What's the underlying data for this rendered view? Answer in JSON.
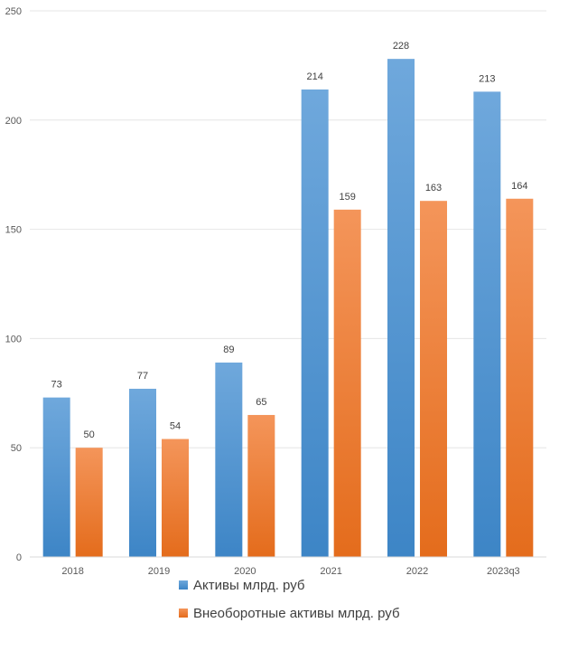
{
  "chart_data": {
    "type": "bar",
    "categories": [
      "2018",
      "2019",
      "2020",
      "2021",
      "2022",
      "2023q3"
    ],
    "series": [
      {
        "name": "Активы млрд. руб",
        "values": [
          73,
          77,
          89,
          214,
          228,
          213
        ],
        "color": "#5B9BD5"
      },
      {
        "name": "Внеоборотные активы млрд. руб",
        "values": [
          50,
          54,
          65,
          159,
          163,
          164
        ],
        "color": "#ED7D31"
      }
    ],
    "ylim": [
      0,
      250
    ],
    "yticks": [
      0,
      50,
      100,
      150,
      200,
      250
    ],
    "grid": true,
    "legend_position": "bottom-left",
    "title": "",
    "xlabel": "",
    "ylabel": ""
  }
}
